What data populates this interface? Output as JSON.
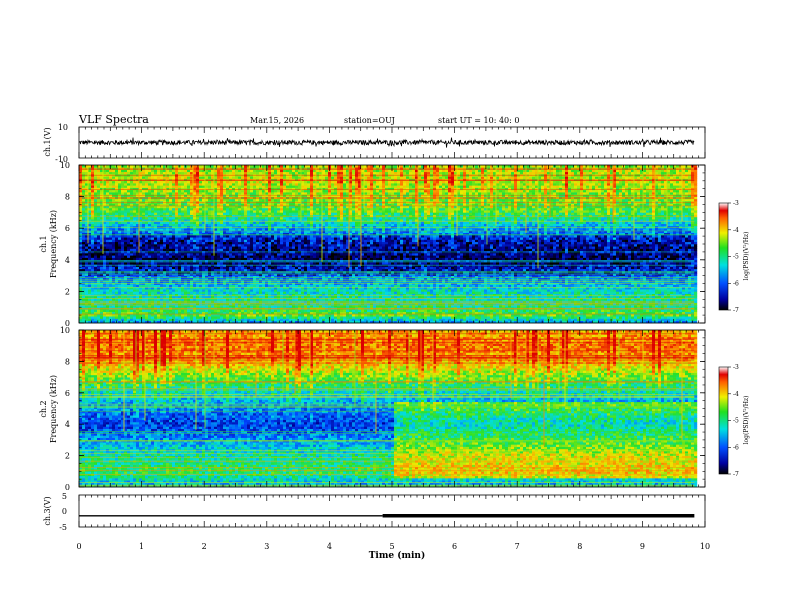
{
  "header": {
    "title": "VLF Spectra",
    "date": "Mar.15, 2026",
    "station": "station=OUJ",
    "start": "start  UT  =   10: 40: 0"
  },
  "chart_data": [
    {
      "type": "line",
      "name": "ch1-waveform",
      "ylabel": "ch.1(V)",
      "ylim": [
        -10,
        10
      ],
      "yticks": [
        "10",
        "-10"
      ],
      "x": [
        0,
        9.83
      ],
      "level": 0,
      "noise_amplitude": 1.5
    },
    {
      "type": "heatmap",
      "name": "ch1-spectrogram",
      "ylabel": "ch.1",
      "ylabel2": "Frequency (kHz)",
      "ylim": [
        0,
        10
      ],
      "yticks": [
        "0",
        "2",
        "4",
        "6",
        "8",
        "10"
      ],
      "xlim": [
        0,
        9.83
      ],
      "colorbar": {
        "label": "log(PSD)(V²/Hz)",
        "range": [
          -7,
          -3
        ],
        "ticks": [
          "-3",
          "-4",
          "-5",
          "-6",
          "-7"
        ]
      },
      "profile": [
        [
          0,
          -6.1
        ],
        [
          0.5,
          -5.0
        ],
        [
          1,
          -5.3
        ],
        [
          2,
          -5.6
        ],
        [
          3,
          -6.2
        ],
        [
          4,
          -6.9
        ],
        [
          5,
          -6.7
        ],
        [
          6,
          -6.0
        ],
        [
          7,
          -5.1
        ],
        [
          8,
          -4.9
        ],
        [
          9,
          -4.6
        ],
        [
          10,
          -4.8
        ]
      ]
    },
    {
      "type": "heatmap",
      "name": "ch2-spectrogram",
      "ylabel": "ch.2",
      "ylabel2": "Frequency (kHz)",
      "ylim": [
        0,
        10
      ],
      "yticks": [
        "0",
        "2",
        "4",
        "6",
        "8",
        "10"
      ],
      "xlim": [
        0,
        9.83
      ],
      "colorbar": {
        "label": "log(PSD)(V²/Hz)",
        "range": [
          -7,
          -3
        ],
        "ticks": [
          "-3",
          "-4",
          "-5",
          "-6",
          "-7"
        ]
      },
      "profile": [
        [
          0,
          -6.0
        ],
        [
          1,
          -5.2
        ],
        [
          2,
          -5.5
        ],
        [
          3,
          -6.0
        ],
        [
          4,
          -6.5
        ],
        [
          5,
          -6.1
        ],
        [
          6,
          -5.6
        ],
        [
          7,
          -4.9
        ],
        [
          8,
          -4.2
        ],
        [
          9,
          -3.9
        ],
        [
          10,
          -4.2
        ]
      ],
      "change_at_min": 5.0
    },
    {
      "type": "line",
      "name": "ch3-signal",
      "ylabel": "ch.3(V)",
      "ylim": [
        -5,
        5
      ],
      "yticks": [
        "5",
        "0",
        "-5"
      ],
      "x": [
        0,
        4.85,
        4.85,
        9.83
      ],
      "y": [
        -1.5,
        -1.5,
        -1.5,
        -1.5
      ],
      "thick_from": 4.85
    }
  ],
  "xaxis": {
    "label": "Time (min)",
    "range": [
      0,
      10
    ],
    "ticks": [
      "0",
      "1",
      "2",
      "3",
      "4",
      "5",
      "6",
      "7",
      "8",
      "9",
      "10"
    ]
  }
}
